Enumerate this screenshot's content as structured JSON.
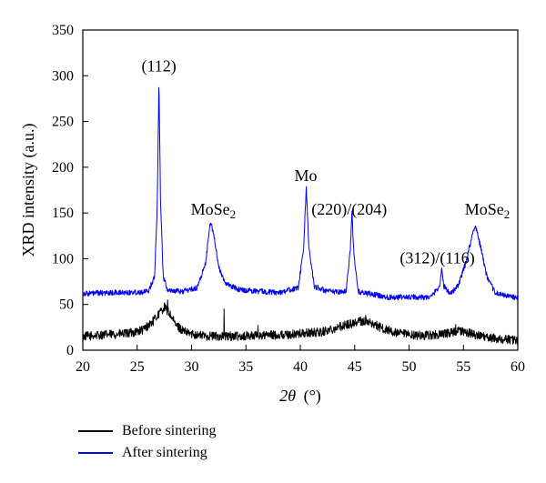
{
  "chart_data": {
    "type": "line",
    "xlabel_symbol": "2θ",
    "xlabel_unit": "(°)",
    "ylabel": "XRD intensity (a.u.)",
    "xlim": [
      20,
      60
    ],
    "ylim": [
      0,
      350
    ],
    "xticks": [
      20,
      25,
      30,
      35,
      40,
      45,
      50,
      55,
      60
    ],
    "yticks": [
      0,
      50,
      100,
      150,
      200,
      250,
      300,
      350
    ],
    "grid": false,
    "legend_position": "bottom-left, outside plot",
    "series": [
      {
        "name": "Before sintering",
        "color": "#000000",
        "noise": 5,
        "points": [
          [
            20,
            15
          ],
          [
            22,
            17
          ],
          [
            24,
            18
          ],
          [
            25.5,
            22
          ],
          [
            26.5,
            32
          ],
          [
            27,
            40
          ],
          [
            27.5,
            47
          ],
          [
            28,
            40
          ],
          [
            28.5,
            28
          ],
          [
            29.5,
            19
          ],
          [
            31,
            16
          ],
          [
            33,
            15
          ],
          [
            36,
            16
          ],
          [
            39,
            17
          ],
          [
            42,
            20
          ],
          [
            44,
            27
          ],
          [
            45.5,
            32
          ],
          [
            46.5,
            30
          ],
          [
            47.5,
            24
          ],
          [
            49,
            18
          ],
          [
            51,
            16
          ],
          [
            53,
            17
          ],
          [
            54.5,
            21
          ],
          [
            55.5,
            19
          ],
          [
            57,
            14
          ],
          [
            59,
            12
          ],
          [
            60,
            11
          ]
        ],
        "spikes": [
          [
            33.0,
            45
          ],
          [
            36.1,
            27
          ],
          [
            27.8,
            55
          ],
          [
            46.0,
            38
          ],
          [
            54.3,
            28
          ]
        ]
      },
      {
        "name": "After sintering",
        "color": "#0000ee",
        "noise": 3,
        "points": [
          [
            20,
            62
          ],
          [
            24,
            63
          ],
          [
            26,
            64
          ],
          [
            26.6,
            80
          ],
          [
            26.85,
            160
          ],
          [
            27.0,
            298
          ],
          [
            27.15,
            160
          ],
          [
            27.4,
            80
          ],
          [
            27.8,
            66
          ],
          [
            29,
            64
          ],
          [
            30.5,
            68
          ],
          [
            31.3,
            95
          ],
          [
            31.7,
            140
          ],
          [
            32.0,
            130
          ],
          [
            32.5,
            90
          ],
          [
            33.2,
            72
          ],
          [
            34.5,
            66
          ],
          [
            38,
            63
          ],
          [
            39.8,
            68
          ],
          [
            40.3,
            110
          ],
          [
            40.55,
            178
          ],
          [
            40.8,
            110
          ],
          [
            41.3,
            70
          ],
          [
            42.5,
            64
          ],
          [
            44.2,
            64
          ],
          [
            44.6,
            110
          ],
          [
            44.75,
            153
          ],
          [
            44.9,
            110
          ],
          [
            45.3,
            64
          ],
          [
            48,
            58
          ],
          [
            52,
            58
          ],
          [
            52.8,
            70
          ],
          [
            53.0,
            88
          ],
          [
            53.2,
            70
          ],
          [
            53.8,
            62
          ],
          [
            54.5,
            70
          ],
          [
            55.2,
            95
          ],
          [
            55.8,
            125
          ],
          [
            56.1,
            137
          ],
          [
            56.6,
            112
          ],
          [
            57.2,
            78
          ],
          [
            58,
            62
          ],
          [
            60,
            57
          ]
        ],
        "spikes": []
      }
    ],
    "annotations": [
      {
        "text": "(112)",
        "x": 27.0,
        "y": 305
      },
      {
        "text": "MoSe",
        "sub": "2",
        "x": 32.0,
        "y": 148
      },
      {
        "text": "Mo",
        "x": 40.5,
        "y": 185
      },
      {
        "text": "(220)/(204)",
        "x": 44.5,
        "y": 148
      },
      {
        "text": "(312)/(116)",
        "x": 52.6,
        "y": 95
      },
      {
        "text": "MoSe",
        "sub": "2",
        "x": 57.2,
        "y": 148
      }
    ]
  }
}
